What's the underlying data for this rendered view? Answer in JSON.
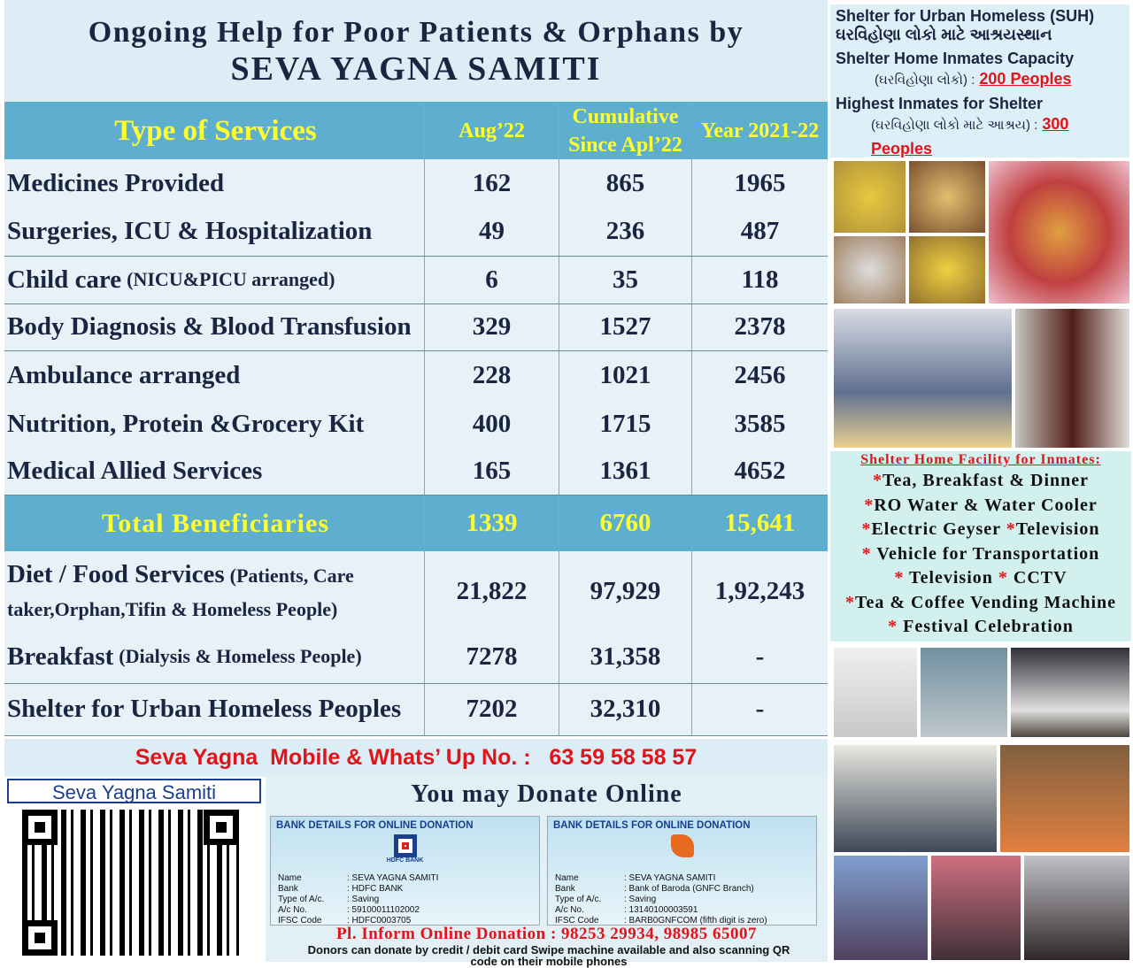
{
  "header": {
    "title_line1": "Ongoing Help for Poor Patients & Orphans by",
    "title_line2": "SEVA YAGNA SAMITI"
  },
  "table": {
    "columns": [
      "Type of  Services",
      "Aug’22",
      "Cumulative Since Apl’22",
      "Year 2021-22"
    ],
    "sections": [
      [
        {
          "service": "Medicines Provided",
          "values": [
            "162",
            "865",
            "1965"
          ]
        },
        {
          "service": "Surgeries, ICU & Hospitalization",
          "values": [
            "49",
            "236",
            "487"
          ]
        }
      ],
      [
        {
          "service": "Child care",
          "note": "(NICU&PICU arranged)",
          "values": [
            "6",
            "35",
            "118"
          ]
        }
      ],
      [
        {
          "service": "Body Diagnosis & Blood Transfusion",
          "values": [
            "329",
            "1527",
            "2378"
          ]
        }
      ],
      [
        {
          "service": "Ambulance arranged",
          "values": [
            "228",
            "1021",
            "2456"
          ]
        },
        {
          "service": "Nutrition, Protein &Grocery Kit",
          "values": [
            "400",
            "1715",
            "3585"
          ]
        },
        {
          "service": "Medical Allied Services",
          "values": [
            "165",
            "1361",
            "4652"
          ]
        }
      ]
    ],
    "total": {
      "service": "Total  Beneficiaries",
      "values": [
        "1339",
        "6760",
        "15,641"
      ]
    },
    "food_sections": [
      [
        {
          "service": "Diet / Food  Services",
          "note": "(Patients, Care taker,Orphan,Tifin & Homeless People)",
          "values": [
            "21,822",
            "97,929",
            "1,92,243"
          ]
        },
        {
          "service": "Breakfast",
          "note": "(Dialysis & Homeless People)",
          "values": [
            "7278",
            "31,358",
            "-"
          ]
        }
      ],
      [
        {
          "service": "Shelter for Urban Homeless Peoples",
          "values": [
            "7202",
            "32,310",
            "-"
          ]
        }
      ]
    ]
  },
  "contact": "Seva Yagna  Mobile & Whats’ Up No. :   63 59 58 58 57",
  "qr_label": "Seva Yagna Samiti",
  "donate": {
    "title": "You may  Donate Online",
    "banks": [
      {
        "header": "BANK DETAILS FOR ONLINE DONATION",
        "logo": "HDFC BANK",
        "fields": [
          [
            "Name",
            ": SEVA YAGNA SAMITI"
          ],
          [
            "Bank",
            ": HDFC BANK"
          ],
          [
            "Type of A/c.",
            ": Saving"
          ],
          [
            "A/c No.",
            ": 59100011102002"
          ],
          [
            "IFSC Code",
            ": HDFC0003705"
          ]
        ]
      },
      {
        "header": "BANK DETAILS FOR ONLINE DONATION",
        "fields": [
          [
            "Name",
            ": SEVA YAGNA SAMITI"
          ],
          [
            "Bank",
            ": Bank of Baroda (GNFC Branch)"
          ],
          [
            "Type of A/c.",
            ": Saving"
          ],
          [
            "A/c No.",
            ": 13140100003591"
          ],
          [
            "IFSC Code",
            ": BARB0GNFCOM (fifth digit is zero)"
          ]
        ]
      }
    ],
    "inform": "Pl. Inform Online Donation : 98253 29934, 98985 65007",
    "swipe": "Donors can donate by credit / debit card Swipe machine available and also scanning QR code on their mobile phones"
  },
  "suh": {
    "title": "Shelter for Urban Homeless (SUH)",
    "title_gu": "ઘરવિહોણા લોકો માટે આશ્રયસ્થાન",
    "capacity_label": "Shelter Home Inmates Capacity",
    "capacity_gu": "(ઘરવિહોણા લોકો) :",
    "capacity_value": "200 Peoples",
    "highest_label": "Highest Inmates for Shelter",
    "highest_gu": "(ઘરવિહોણા લોકો માટે આશ્રય) :",
    "highest_value": "300 Peoples"
  },
  "facilities": {
    "title": "Shelter Home Facility for Inmates:",
    "items": [
      "*Tea, Breakfast & Dinner",
      "*RO Water & Water Cooler",
      "*Electric Geyser  *Television",
      "* Vehicle for Transportation",
      "* Television   * CCTV",
      "*Tea & Coffee Vending Machine",
      "* Festival Celebration"
    ]
  }
}
